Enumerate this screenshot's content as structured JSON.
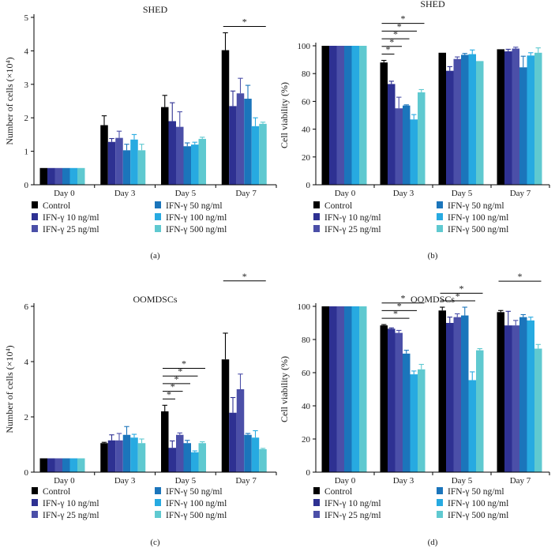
{
  "legend_labels": [
    "Control",
    "IFN-γ 10 ng/ml",
    "IFN-γ 25 ng/ml",
    "IFN-γ 50 ng/ml",
    "IFN-γ 100 ng/ml",
    "IFN-γ 500 ng/ml"
  ],
  "series_colors": [
    "#000000",
    "#2e3192",
    "#4b4fa8",
    "#1b75bb",
    "#27aae1",
    "#5fc9d0"
  ],
  "chart_data": [
    {
      "panel": "(a)",
      "type": "bar",
      "title": "SHED",
      "xlabel": "",
      "ylabel": "Number of cells (×10⁴)",
      "ylim": [
        0,
        5
      ],
      "yticks": [
        0,
        1,
        2,
        3,
        4,
        5
      ],
      "categories": [
        "Day 0",
        "Day 3",
        "Day 5",
        "Day 7"
      ],
      "series": [
        {
          "name": "Control",
          "values": [
            0.5,
            1.78,
            2.32,
            4.02
          ],
          "errors": [
            0,
            0.28,
            0.35,
            0.52
          ]
        },
        {
          "name": "IFN-γ 10 ng/ml",
          "values": [
            0.5,
            1.28,
            1.9,
            2.35
          ],
          "errors": [
            0,
            0.1,
            0.55,
            0.45
          ]
        },
        {
          "name": "IFN-γ 25 ng/ml",
          "values": [
            0.5,
            1.4,
            1.73,
            2.73
          ],
          "errors": [
            0,
            0.2,
            0.45,
            0.45
          ]
        },
        {
          "name": "IFN-γ 50 ng/ml",
          "values": [
            0.5,
            1.03,
            1.15,
            2.57
          ],
          "errors": [
            0,
            0.18,
            0.1,
            0.4
          ]
        },
        {
          "name": "IFN-γ 100 ng/ml",
          "values": [
            0.5,
            1.35,
            1.2,
            1.75
          ],
          "errors": [
            0,
            0.15,
            0.07,
            0.25
          ]
        },
        {
          "name": "IFN-γ 500 ng/ml",
          "values": [
            0.5,
            1.03,
            1.37,
            1.82
          ],
          "errors": [
            0,
            0.18,
            0.05,
            0.05
          ]
        }
      ],
      "significance": [
        {
          "day": 3,
          "from": 0,
          "to": 5,
          "level": 1,
          "label": "*"
        }
      ]
    },
    {
      "panel": "(b)",
      "type": "bar",
      "title": "SHED",
      "xlabel": "",
      "ylabel": "Cell viability (%)",
      "ylim": [
        0,
        100
      ],
      "yticks": [
        0,
        20,
        40,
        60,
        80,
        100
      ],
      "categories": [
        "Day 0",
        "Day 3",
        "Day 5",
        "Day 7"
      ],
      "series": [
        {
          "name": "Control",
          "values": [
            100,
            88,
            95,
            97.5
          ],
          "errors": [
            0,
            1.5,
            0,
            0
          ]
        },
        {
          "name": "IFN-γ 10 ng/ml",
          "values": [
            100,
            72.5,
            82,
            96
          ],
          "errors": [
            0,
            2,
            3,
            1.5
          ]
        },
        {
          "name": "IFN-γ 25 ng/ml",
          "values": [
            100,
            55,
            90.5,
            98
          ],
          "errors": [
            0,
            8,
            1.5,
            1
          ]
        },
        {
          "name": "IFN-γ 50 ng/ml",
          "values": [
            100,
            57,
            93.5,
            84.5
          ],
          "errors": [
            0,
            0.5,
            1,
            8
          ]
        },
        {
          "name": "IFN-γ 100 ng/ml",
          "values": [
            100,
            47,
            94,
            93
          ],
          "errors": [
            0,
            3.5,
            3,
            2
          ]
        },
        {
          "name": "IFN-γ 500 ng/ml",
          "values": [
            100,
            66.5,
            89,
            95
          ],
          "errors": [
            0,
            2,
            0,
            3.5
          ]
        }
      ],
      "significance": [
        {
          "day": 1,
          "from": 0,
          "to": 1,
          "level": 1,
          "label": "*"
        },
        {
          "day": 1,
          "from": 0,
          "to": 2,
          "level": 2,
          "label": "*"
        },
        {
          "day": 1,
          "from": 0,
          "to": 3,
          "level": 3,
          "label": "*"
        },
        {
          "day": 1,
          "from": 0,
          "to": 4,
          "level": 4,
          "label": "*"
        },
        {
          "day": 1,
          "from": 0,
          "to": 5,
          "level": 5,
          "label": "*"
        }
      ]
    },
    {
      "panel": "(c)",
      "type": "bar",
      "title": "OOMDSCs",
      "xlabel": "",
      "ylabel": "Number of cells (×10⁴)",
      "ylim": [
        0,
        6
      ],
      "yticks": [
        0,
        2,
        4,
        6
      ],
      "categories": [
        "Day 0",
        "Day 3",
        "Day 5",
        "Day 7"
      ],
      "series": [
        {
          "name": "Control",
          "values": [
            0.5,
            1.05,
            2.2,
            4.08
          ],
          "errors": [
            0,
            0.03,
            0.22,
            0.95
          ]
        },
        {
          "name": "IFN-γ 10 ng/ml",
          "values": [
            0.5,
            1.15,
            0.88,
            2.15
          ],
          "errors": [
            0,
            0.2,
            0.25,
            0.55
          ]
        },
        {
          "name": "IFN-γ 25 ng/ml",
          "values": [
            0.5,
            1.15,
            1.35,
            3.0
          ],
          "errors": [
            0,
            0.25,
            0.07,
            0.55
          ]
        },
        {
          "name": "IFN-γ 50 ng/ml",
          "values": [
            0.5,
            1.35,
            1.05,
            1.35
          ],
          "errors": [
            0,
            0.3,
            0.1,
            0.05
          ]
        },
        {
          "name": "IFN-γ 100 ng/ml",
          "values": [
            0.5,
            1.25,
            0.72,
            1.25
          ],
          "errors": [
            0,
            0.12,
            0.05,
            0.25
          ]
        },
        {
          "name": "IFN-γ 500 ng/ml",
          "values": [
            0.5,
            1.05,
            1.05,
            0.83
          ],
          "errors": [
            0,
            0.15,
            0.05,
            0.03
          ]
        }
      ],
      "significance": [
        {
          "day": 2,
          "from": 0,
          "to": 1,
          "level": 1,
          "label": "*"
        },
        {
          "day": 2,
          "from": 0,
          "to": 2,
          "level": 2,
          "label": "*"
        },
        {
          "day": 2,
          "from": 0,
          "to": 3,
          "level": 3,
          "label": "*"
        },
        {
          "day": 2,
          "from": 0,
          "to": 4,
          "level": 4,
          "label": "*"
        },
        {
          "day": 2,
          "from": 0,
          "to": 5,
          "level": 5,
          "label": "*"
        },
        {
          "day": 3,
          "from": 0,
          "to": 5,
          "level": 7,
          "label": "*"
        }
      ]
    },
    {
      "panel": "(d)",
      "type": "bar",
      "title": "OOMDSCs",
      "xlabel": "",
      "ylabel": "Cell viability (%)",
      "ylim": [
        0,
        100
      ],
      "yticks": [
        0,
        20,
        40,
        60,
        80,
        100
      ],
      "categories": [
        "Day 0",
        "Day 3",
        "Day 5",
        "Day 7"
      ],
      "series": [
        {
          "name": "Control",
          "values": [
            100,
            88.5,
            97.5,
            96.5
          ],
          "errors": [
            0,
            0.5,
            2,
            1
          ]
        },
        {
          "name": "IFN-γ 10 ng/ml",
          "values": [
            100,
            86.5,
            90,
            88.5
          ],
          "errors": [
            0,
            0.5,
            3.5,
            8.5
          ]
        },
        {
          "name": "IFN-γ 25 ng/ml",
          "values": [
            100,
            84,
            93.5,
            88.5
          ],
          "errors": [
            0,
            1.5,
            2,
            3
          ]
        },
        {
          "name": "IFN-γ 50 ng/ml",
          "values": [
            100,
            71.5,
            94.5,
            93.5
          ],
          "errors": [
            0,
            2,
            5,
            1.5
          ]
        },
        {
          "name": "IFN-γ 100 ng/ml",
          "values": [
            100,
            59,
            55.5,
            91.5
          ],
          "errors": [
            0,
            2,
            5,
            2
          ]
        },
        {
          "name": "IFN-γ 500 ng/ml",
          "values": [
            100,
            62,
            73.5,
            74.5
          ],
          "errors": [
            0,
            3,
            1,
            2.5
          ]
        }
      ],
      "significance": [
        {
          "day": 1,
          "from": 0,
          "to": 3,
          "level": 1,
          "label": "*"
        },
        {
          "day": 1,
          "from": 0,
          "to": 4,
          "level": 2,
          "label": "*"
        },
        {
          "day": 1,
          "from": 0,
          "to": 5,
          "level": 3,
          "label": "*"
        },
        {
          "day": 2,
          "from": 0,
          "to": 4,
          "level": 1,
          "label": "*"
        },
        {
          "day": 2,
          "from": 0,
          "to": 5,
          "level": 2,
          "label": "*"
        },
        {
          "day": 3,
          "from": 0,
          "to": 5,
          "level": 4,
          "label": "*"
        }
      ]
    }
  ]
}
